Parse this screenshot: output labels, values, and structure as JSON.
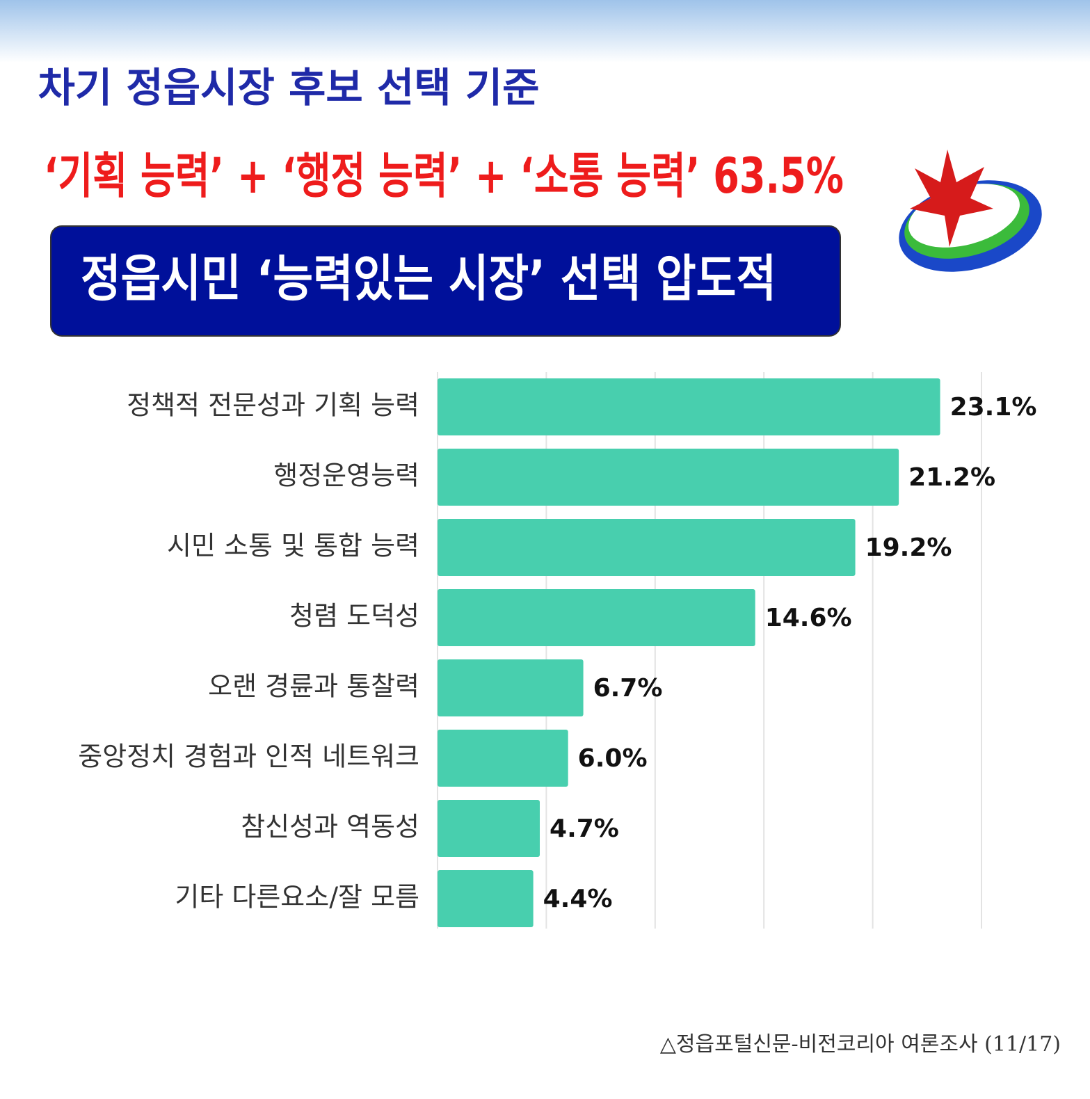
{
  "chart_data": {
    "type": "bar",
    "orientation": "horizontal",
    "title": "차기 정읍시장 후보 선택 기준",
    "subtitle": "‘기획 능력’ + ‘행정 능력’ + ‘소통 능력’  63.5%",
    "banner": "정읍시민 ‘능력있는 시장’ 선택 압도적",
    "source": "△정읍포털신문-비전코리아 여론조사 (11/17)",
    "categories": [
      "정책적 전문성과 기획 능력",
      "행정운영능력",
      "시민 소통 및 통합 능력",
      "청렴 도덕성",
      "오랜 경륜과 통찰력",
      "중앙정치 경험과 인적 네트워크",
      "참신성과 역동성",
      "기타 다른요소/잘 모름"
    ],
    "values": [
      23.1,
      21.2,
      19.2,
      14.6,
      6.7,
      6.0,
      4.7,
      4.4
    ],
    "value_labels": [
      "23.1%",
      "21.2%",
      "19.2%",
      "14.6%",
      "6.7%",
      "6.0%",
      "4.7%",
      "4.4%"
    ],
    "color": "#48cfae",
    "xlim": [
      0,
      25
    ],
    "xticks": [
      0,
      5,
      10,
      15,
      20,
      25
    ],
    "grid": true
  }
}
